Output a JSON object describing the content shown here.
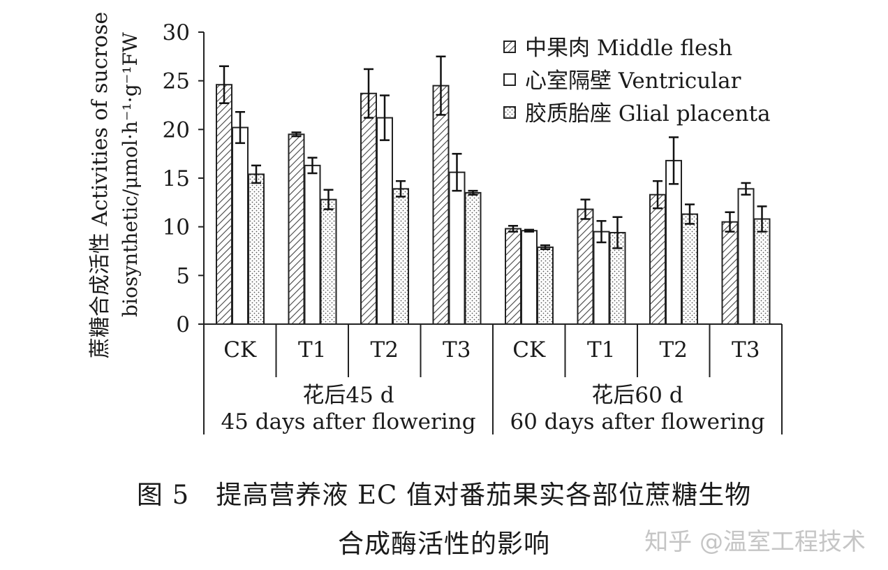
{
  "chart_data": {
    "type": "bar",
    "ylabel_cn": "蔗糖合成活性 Activities of sucrose",
    "ylabel_en": "biosynthetic/μmol·h⁻¹·g⁻¹FW",
    "ylim": [
      0,
      30
    ],
    "yticks": [
      "0",
      "5",
      "10",
      "15",
      "20",
      "25",
      "30"
    ],
    "categories": [
      "CK",
      "T1",
      "T2",
      "T3",
      "CK",
      "T1",
      "T2",
      "T3"
    ],
    "groups": [
      {
        "label_cn": "花后45 d",
        "label_en": "45 days after flowering",
        "span": [
          0,
          3
        ]
      },
      {
        "label_cn": "花后60 d",
        "label_en": "60 days after flowering",
        "span": [
          4,
          7
        ]
      }
    ],
    "series": [
      {
        "name": "中果肉 Middle flesh",
        "pattern": "hatch",
        "values": [
          24.6,
          19.5,
          23.7,
          24.5,
          9.8,
          11.8,
          13.3,
          10.5
        ],
        "errors": [
          1.9,
          0.2,
          2.5,
          3.0,
          0.3,
          1.0,
          1.4,
          1.0
        ]
      },
      {
        "name": "心室隔壁 Ventricular",
        "pattern": "blank",
        "values": [
          20.2,
          16.3,
          21.2,
          15.6,
          9.6,
          9.5,
          16.8,
          13.9
        ],
        "errors": [
          1.6,
          0.8,
          2.3,
          1.9,
          0.1,
          1.1,
          2.4,
          0.6
        ]
      },
      {
        "name": "胶质胎座 Glial placenta",
        "pattern": "dots",
        "values": [
          15.4,
          12.8,
          13.9,
          13.5,
          7.9,
          9.4,
          11.3,
          10.8
        ],
        "errors": [
          0.9,
          1.0,
          0.8,
          0.2,
          0.2,
          1.6,
          1.0,
          1.3
        ]
      }
    ],
    "legend_position": "top-right",
    "grid": false
  },
  "caption": {
    "line1": "图 5　提高营养液 EC 值对番茄果实各部位蔗糖生物",
    "line2": "合成酶活性的影响"
  },
  "watermark": "知乎 @温室工程技术"
}
